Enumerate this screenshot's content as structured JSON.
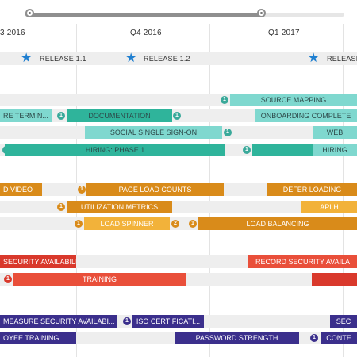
{
  "timeline": {
    "quarters": [
      "3 2016",
      "Q4 2016",
      "Q1 2017"
    ],
    "range_start_fraction": 0.0,
    "range_end_fraction": 0.74
  },
  "releases": [
    {
      "label": "RELEASE 1.1"
    },
    {
      "label": "RELEASE 1.2"
    },
    {
      "label": "RELEASE"
    }
  ],
  "items": {
    "source_mapping": "SOURCE MAPPING",
    "terminal": "RE TERMIN...",
    "documentation": "DOCUMENTATION",
    "onboarding": "ONBOARDING COMPLETE",
    "social_sso": "SOCIAL SINGLE SIGN-ON",
    "web": "WEB",
    "hiring1": "HIRING: PHASE 1",
    "hiring2": "HIRING",
    "d_video": "D VIDEO",
    "page_load": "PAGE LOAD COUNTS",
    "defer_loading": "DEFER LOADING",
    "utilization": "UTILIZATION METRICS",
    "api": "API H",
    "load_spinner": "LOAD SPINNER",
    "load_balancing": "LOAD BALANCING",
    "security_avail": "SECURITY AVAILABILITY",
    "record_security": "RECORD SECURITY AVAILA",
    "training": "TRAINING",
    "measure_security": "MEASURE SECURITY AVAILABI...",
    "iso_cert": "ISO CERTIFICATI...",
    "sec": "SEC",
    "oyee_training": "OYEE TRAINING",
    "password_strength": "PASSWORD STRENGTH",
    "conte": "CONTE"
  },
  "badges": {
    "b1": "1",
    "b2": "1",
    "b3": "1",
    "b4": "1",
    "b5": "1",
    "b6": "1",
    "b7": "1",
    "b8": "1",
    "b9": "1",
    "b10": "2",
    "b11": "1",
    "b12": "1",
    "b13": "1",
    "b14": "1"
  },
  "colors": {
    "teal_light": "#7fd8cf",
    "teal_dark": "#2fb49b",
    "orange": "#d98b1a",
    "orange_light": "#f2b23a",
    "red": "#e94f3a",
    "red_dark": "#d9392c",
    "purple": "#3b2f8c",
    "release_star": "#1f7fd0"
  }
}
